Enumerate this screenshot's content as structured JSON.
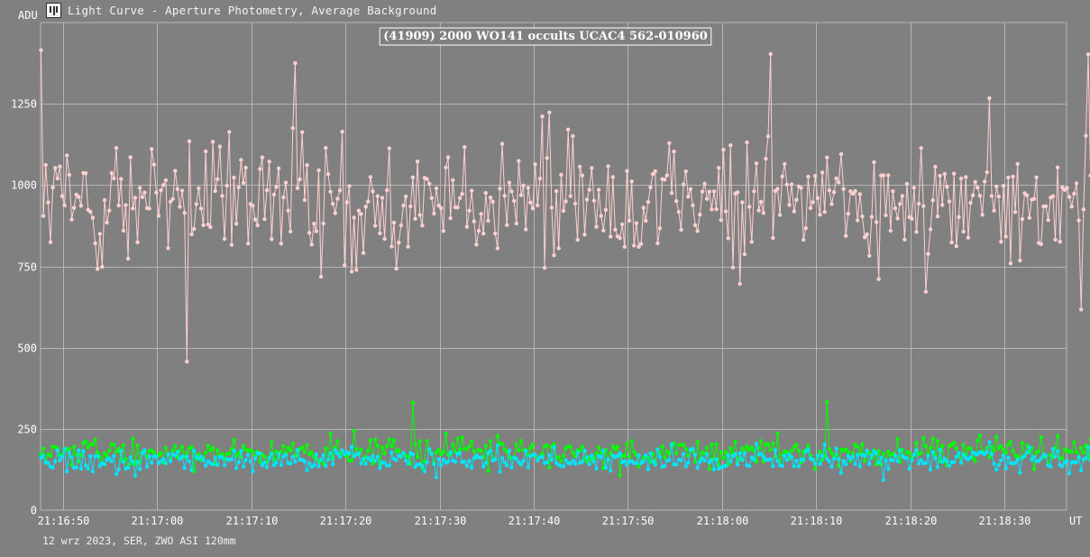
{
  "window": {
    "title": "Light Curve - Aperture Photometry, Average Background",
    "icon": "light-curve-app-icon"
  },
  "footer": {
    "text": "12 wrz 2023, SER, ZWO ASI 120mm"
  },
  "chart_data": {
    "type": "line",
    "title": "(41909) 2000 WO141 occults UCAC4 562-010960",
    "ylabel": "ADU",
    "xunit": "UT",
    "ylim": [
      0,
      1500
    ],
    "yticks": [
      0,
      250,
      500,
      750,
      1000,
      1250
    ],
    "xticks": [
      "21:16:50",
      "21:17:00",
      "21:17:10",
      "21:17:20",
      "21:17:30",
      "21:17:40",
      "21:17:50",
      "21:18:00",
      "21:18:10",
      "21:18:20",
      "21:18:30"
    ],
    "xlim": [
      "21:16:47.6",
      "21:18:36.6"
    ],
    "grid": true,
    "legend": "none",
    "n_points": 450,
    "frame_interval_s": 0.25,
    "series": [
      {
        "color": "#ffd0d0",
        "mean": 950,
        "noise": 150,
        "min_value": 457,
        "max_value": 1415,
        "anchor_points": [
          [
            0,
            1415
          ],
          [
            1,
            905
          ],
          [
            62,
            457
          ],
          [
            108,
            1375
          ],
          [
            310,
            1403
          ],
          [
            445,
            1402
          ]
        ]
      },
      {
        "color": "#00ff00",
        "mean": 178,
        "noise": 35,
        "min_value": 68,
        "max_value": 333,
        "anchor_points": [
          [
            158,
            330
          ],
          [
            334,
            333
          ]
        ]
      },
      {
        "color": "#00e5ff",
        "mean": 155,
        "noise": 30,
        "min_value": 52,
        "max_value": 265
      }
    ]
  }
}
